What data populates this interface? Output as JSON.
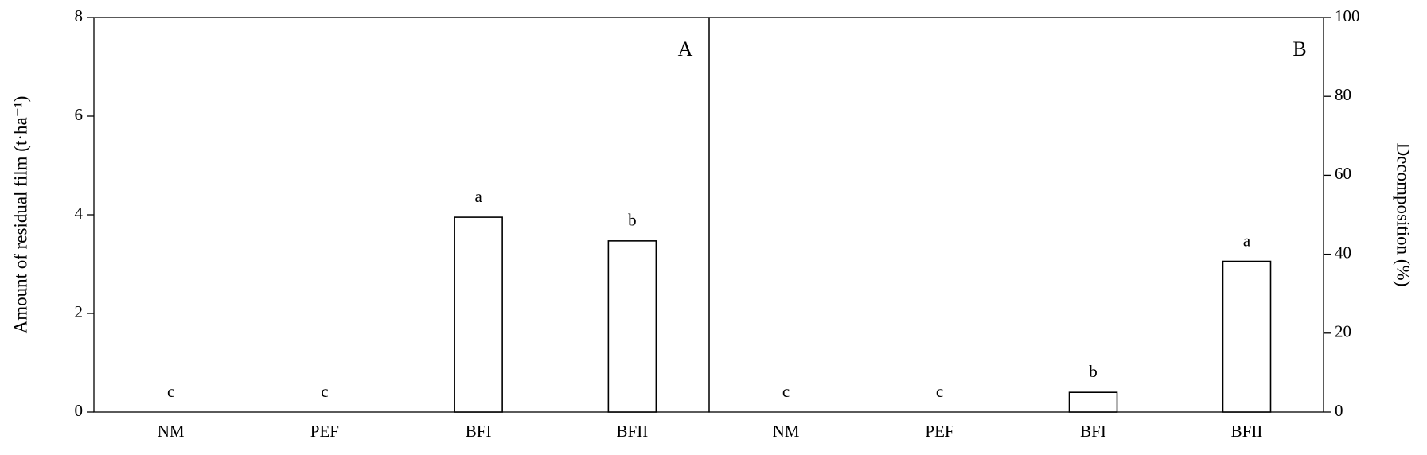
{
  "chart_data": [
    {
      "type": "bar",
      "panel_label": "A",
      "y_label": "Amount of residual film (t·ha⁻¹)",
      "y_axis_side": "left",
      "categories": [
        "NM",
        "PEF",
        "BFI",
        "BFII"
      ],
      "values": [
        0,
        0,
        3.95,
        3.47
      ],
      "annotations": [
        "c",
        "c",
        "a",
        "b"
      ],
      "color": "#ffffff",
      "ylim": [
        0,
        8
      ],
      "yticks": [
        0,
        2,
        4,
        6,
        8
      ]
    },
    {
      "type": "bar",
      "panel_label": "B",
      "y_label": "Decomposition (%)",
      "y_axis_side": "right",
      "categories": [
        "NM",
        "PEF",
        "BFI",
        "BFII"
      ],
      "values": [
        0,
        0,
        5,
        38.2
      ],
      "annotations": [
        "c",
        "c",
        "b",
        "a"
      ],
      "color": "#ffffff",
      "ylim": [
        0,
        100
      ],
      "yticks": [
        0,
        20,
        40,
        60,
        80,
        100
      ]
    }
  ]
}
